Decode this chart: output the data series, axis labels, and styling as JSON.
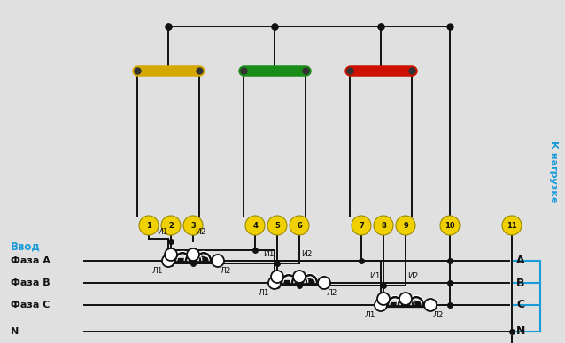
{
  "bg_color": "#e0e0e0",
  "vvod_label": "Ввод",
  "k_nagruzke_label": "К нагрузке",
  "phase_labels": [
    "Фаза A",
    "Фаза B",
    "Фаза C",
    "N"
  ],
  "right_labels": [
    "A",
    "B",
    "C",
    "N"
  ],
  "terminal_numbers": [
    "1",
    "2",
    "3",
    "4",
    "5",
    "6",
    "7",
    "8",
    "9",
    "10",
    "11"
  ],
  "fuse_colors": [
    "#d4a800",
    "#1a8c1a",
    "#cc1100"
  ],
  "line_color": "#111111",
  "label_color": "#1a9cd8"
}
